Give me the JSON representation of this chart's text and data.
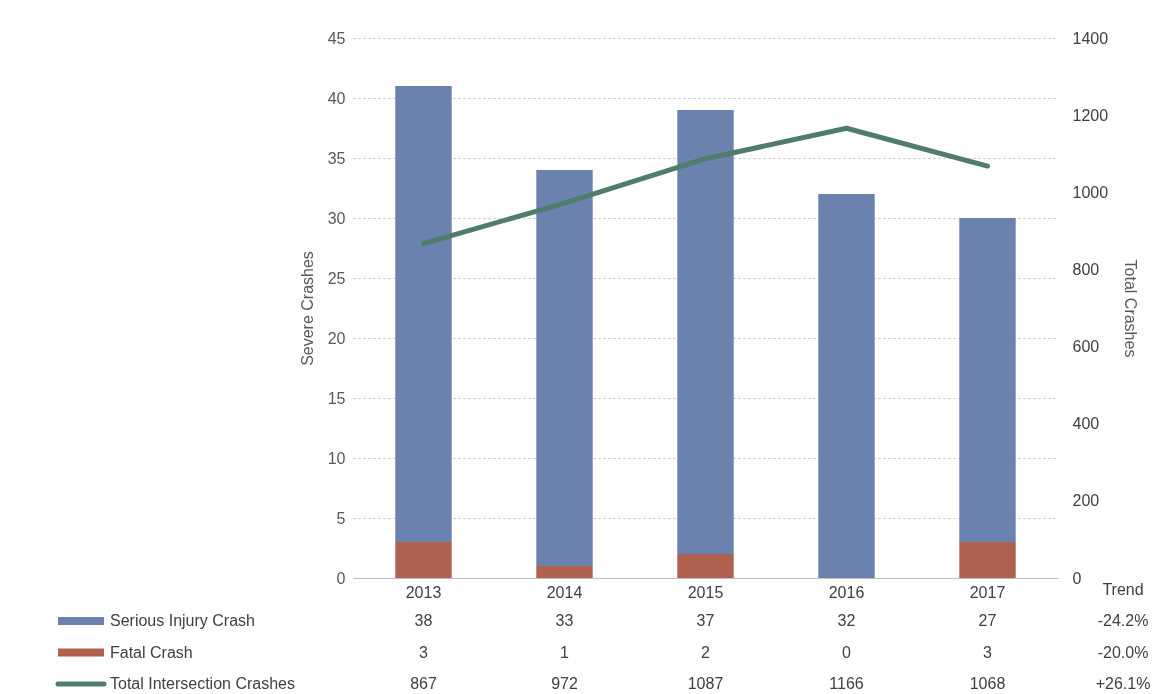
{
  "chart_data": {
    "type": "bar",
    "stacked": true,
    "categories": [
      "2013",
      "2014",
      "2015",
      "2016",
      "2017"
    ],
    "series": [
      {
        "name": "Fatal Crash",
        "type": "bar",
        "color": "#b0604f",
        "values": [
          3,
          1,
          2,
          0,
          3
        ]
      },
      {
        "name": "Serious Injury Crash",
        "type": "bar",
        "color": "#6a82ad",
        "values": [
          38,
          33,
          37,
          32,
          27
        ]
      },
      {
        "name": "Total Intersection Crashes",
        "type": "line",
        "axis": "y2",
        "color": "#4e7d6a",
        "values": [
          867,
          972,
          1087,
          1166,
          1068
        ]
      }
    ],
    "ylabel": "Severe Crashes",
    "y2label": "Total Crashes",
    "ylim": [
      0,
      45
    ],
    "yticks": [
      0,
      5,
      10,
      15,
      20,
      25,
      30,
      35,
      40,
      45
    ],
    "y2lim": [
      0,
      1400
    ],
    "y2ticks": [
      0,
      200,
      400,
      600,
      800,
      1000,
      1200,
      1400
    ],
    "grid": "y",
    "legend": "bottom",
    "data_labels": true,
    "annotations": [
      "Trend",
      "-24.2%",
      "-20.0%",
      "+26.1%"
    ]
  }
}
